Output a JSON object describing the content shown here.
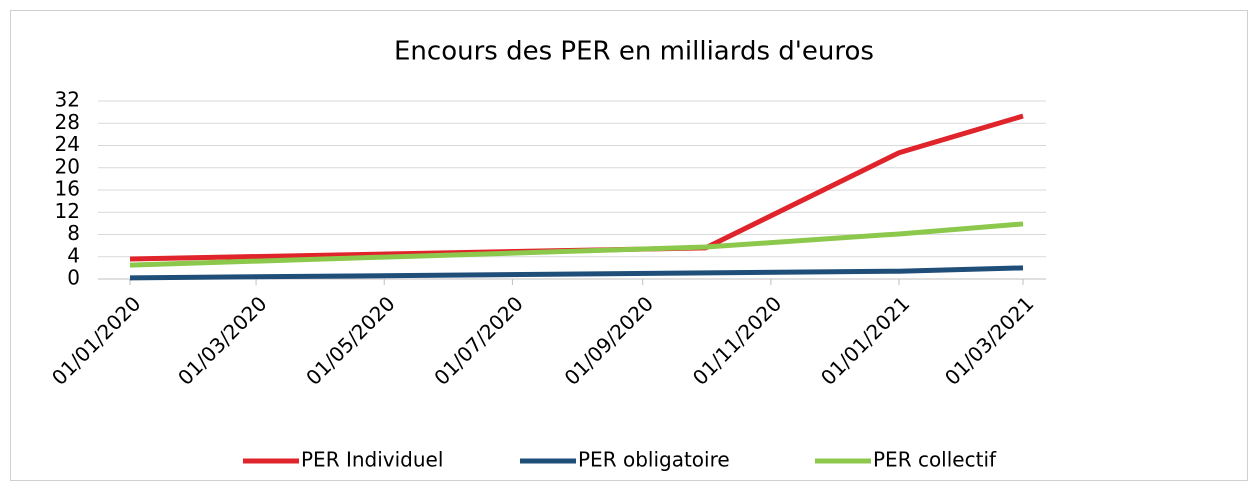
{
  "chart_data": {
    "type": "line",
    "title": "Encours des PER en milliards d'euros",
    "x": [
      "01/01/2020",
      "01/10/2020",
      "01/01/2021",
      "01/03/2021"
    ],
    "series": [
      {
        "name": "PER Individuel",
        "color": "#e0242b",
        "values": [
          3.6,
          5.6,
          22.7,
          29.3
        ]
      },
      {
        "name": "PER obligatoire",
        "color": "#1f4e79",
        "values": [
          0.2,
          1.1,
          1.4,
          2.0
        ]
      },
      {
        "name": "PER collectif",
        "color": "#8cc84b",
        "values": [
          2.5,
          5.75,
          8.1,
          9.9
        ]
      }
    ],
    "xticks": [
      "01/01/2020",
      "01/03/2020",
      "01/05/2020",
      "01/07/2020",
      "01/09/2020",
      "01/11/2020",
      "01/01/2021",
      "01/03/2021"
    ],
    "ylim": [
      0,
      32
    ],
    "yticks": [
      0,
      4,
      8,
      12,
      16,
      20,
      24,
      28,
      32
    ],
    "grid": true,
    "legend": "bottom"
  }
}
